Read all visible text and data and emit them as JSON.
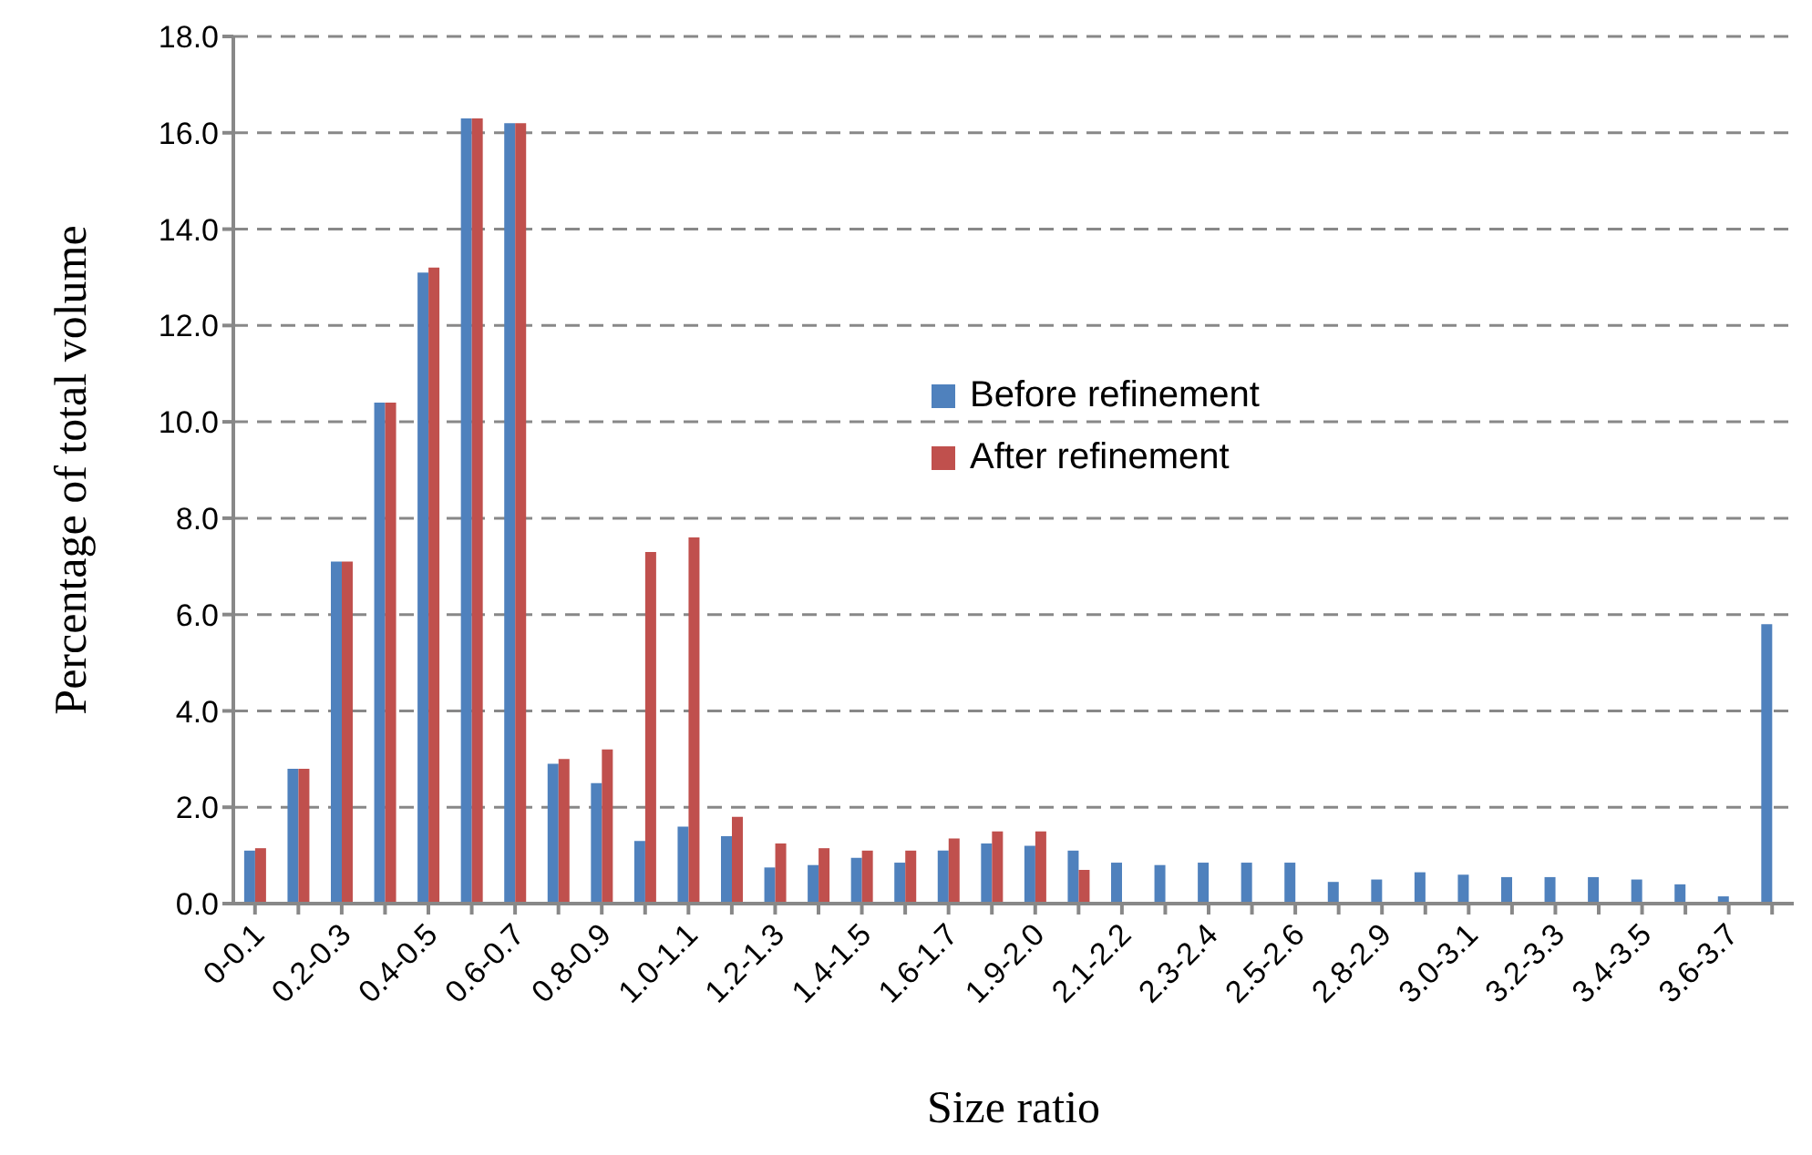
{
  "chart_data": {
    "type": "bar",
    "xlabel": "Size ratio",
    "ylabel": "Percentage of total volume",
    "categories": [
      "0-0.1",
      null,
      "0.2-0.3",
      null,
      "0.4-0.5",
      null,
      "0.6-0.7",
      null,
      "0.8-0.9",
      null,
      "1.0-1.1",
      null,
      "1.2-1.3",
      null,
      "1.4-1.5",
      null,
      "1.6-1.7",
      null,
      "1.9-2.0",
      null,
      "2.1-2.2",
      null,
      "2.3-2.4",
      null,
      "2.5-2.6",
      null,
      "2.8-2.9",
      null,
      "3.0-3.1",
      null,
      "3.2-3.3",
      null,
      "3.4-3.5",
      null,
      "3.6-3.7",
      null
    ],
    "series": [
      {
        "name": "Before refinement",
        "color": "#4f81bd",
        "values": [
          1.1,
          2.8,
          7.1,
          10.4,
          13.1,
          16.3,
          16.2,
          2.9,
          2.5,
          1.3,
          1.6,
          1.4,
          0.75,
          0.8,
          0.95,
          0.85,
          1.1,
          1.25,
          1.2,
          1.1,
          0.85,
          0.8,
          0.85,
          0.85,
          0.85,
          0.45,
          0.5,
          0.65,
          0.6,
          0.55,
          0.55,
          0.55,
          0.5,
          0.4,
          0.15,
          5.8
        ]
      },
      {
        "name": "After refinement",
        "color": "#c0504d",
        "values": [
          1.15,
          2.8,
          7.1,
          10.4,
          13.2,
          16.3,
          16.2,
          3.0,
          3.2,
          7.3,
          7.6,
          1.8,
          1.25,
          1.15,
          1.1,
          1.1,
          1.35,
          1.5,
          1.5,
          0.7,
          null,
          null,
          null,
          null,
          null,
          null,
          null,
          null,
          null,
          null,
          null,
          null,
          null,
          null,
          null,
          null
        ]
      }
    ],
    "ylim": [
      0,
      18
    ],
    "yticks": [
      {
        "value": 0,
        "label": "0.0"
      },
      {
        "value": 2,
        "label": "2.0"
      },
      {
        "value": 4,
        "label": "4.0"
      },
      {
        "value": 6,
        "label": "6.0"
      },
      {
        "value": 8,
        "label": "8.0"
      },
      {
        "value": 10,
        "label": "10.0"
      },
      {
        "value": 12,
        "label": "12.0"
      },
      {
        "value": 14,
        "label": "14.0"
      },
      {
        "value": 16,
        "label": "16.0"
      },
      {
        "value": 18,
        "label": "18.0"
      }
    ],
    "grid": "y",
    "legend": "center"
  }
}
